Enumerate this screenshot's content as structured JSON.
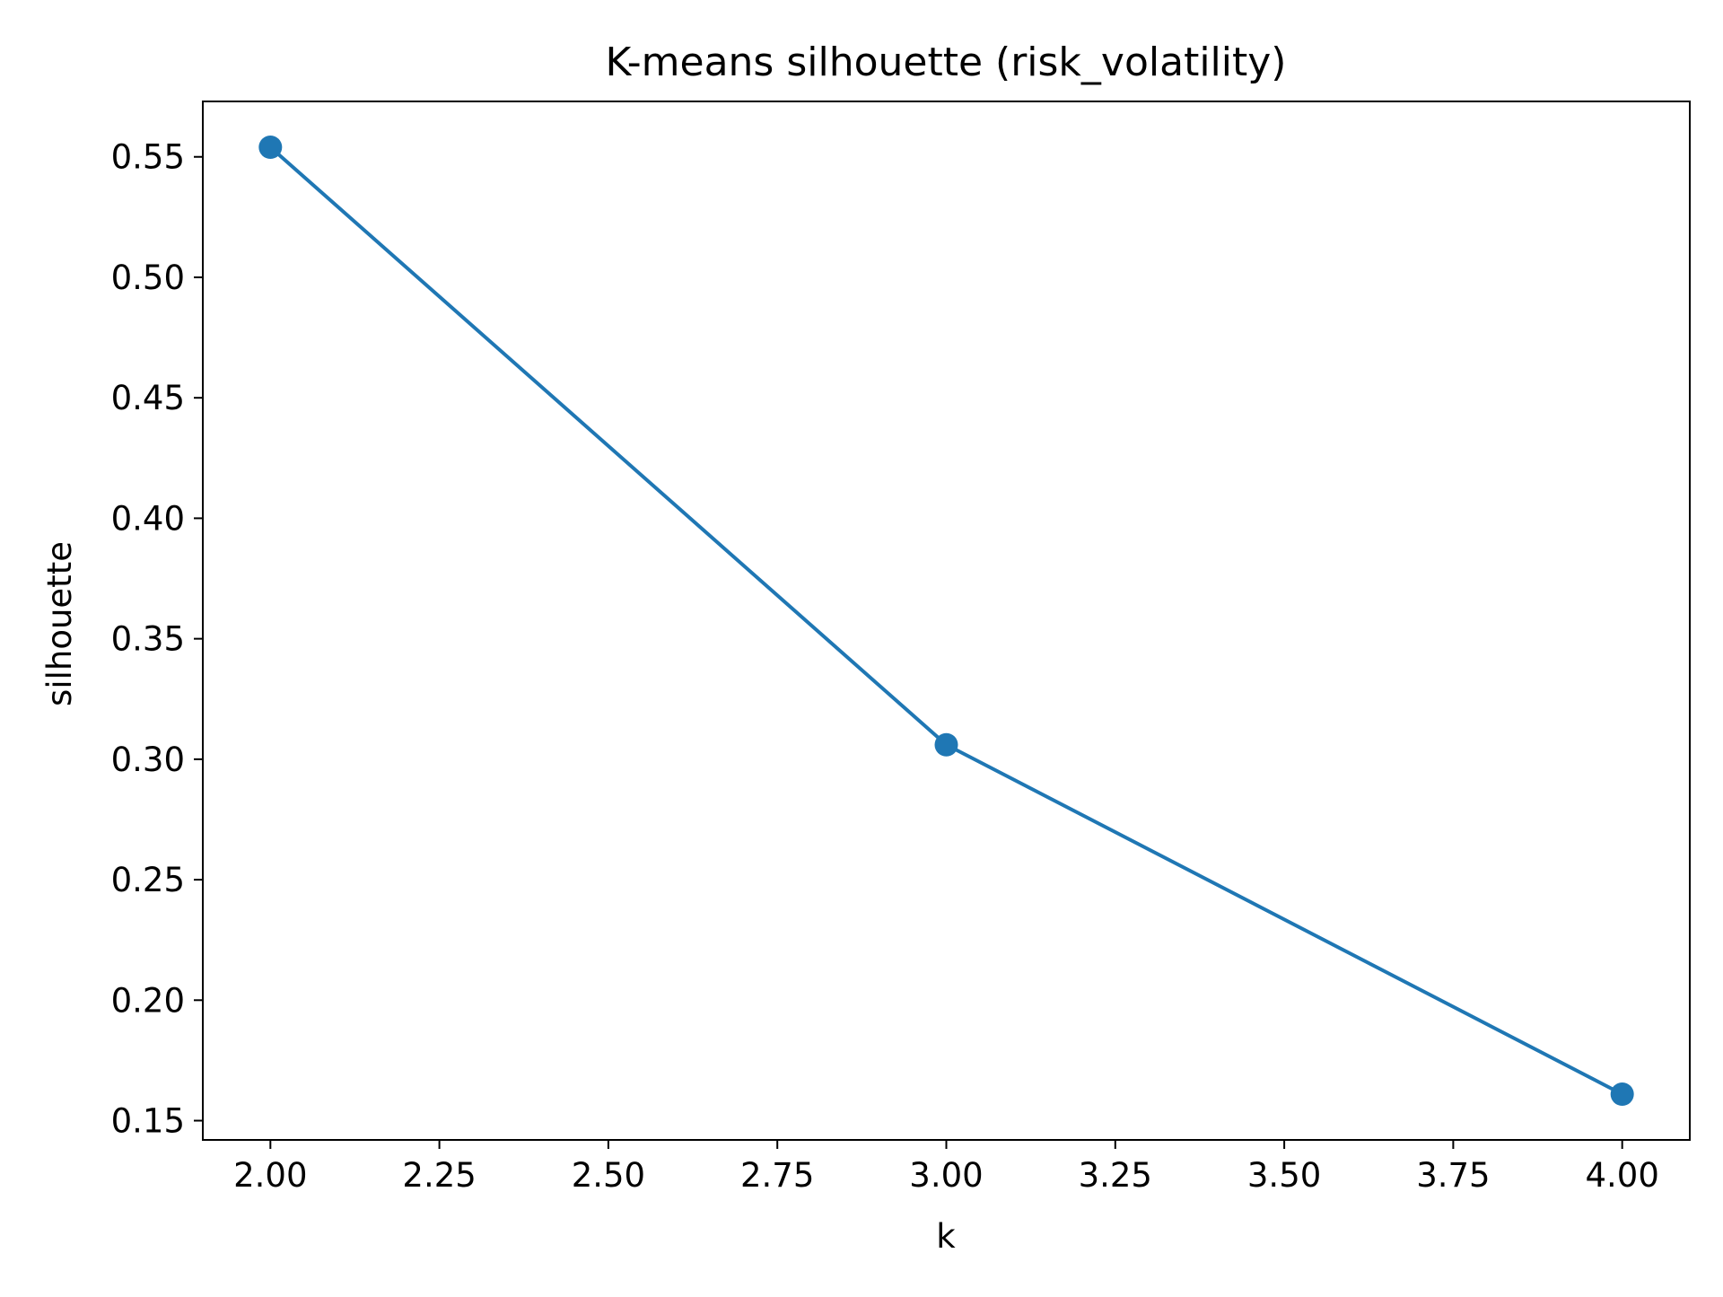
{
  "chart_data": {
    "type": "line",
    "title": "K-means silhouette (risk_volatility)",
    "xlabel": "k",
    "ylabel": "silhouette",
    "x": [
      2.0,
      3.0,
      4.0
    ],
    "series": [
      {
        "values": [
          0.554,
          0.306,
          0.161
        ],
        "color": "#1f77b4"
      }
    ],
    "xlim": [
      1.9,
      4.1
    ],
    "ylim": [
      0.142,
      0.573
    ],
    "xticks": [
      2.0,
      2.25,
      2.5,
      2.75,
      3.0,
      3.25,
      3.5,
      3.75,
      4.0
    ],
    "xtick_labels": [
      "2.00",
      "2.25",
      "2.50",
      "2.75",
      "3.00",
      "3.25",
      "3.50",
      "3.75",
      "4.00"
    ],
    "yticks": [
      0.15,
      0.2,
      0.25,
      0.3,
      0.35,
      0.4,
      0.45,
      0.5,
      0.55
    ],
    "ytick_labels": [
      "0.15",
      "0.20",
      "0.25",
      "0.30",
      "0.35",
      "0.40",
      "0.45",
      "0.50",
      "0.55"
    ],
    "grid": false,
    "legend": false
  }
}
